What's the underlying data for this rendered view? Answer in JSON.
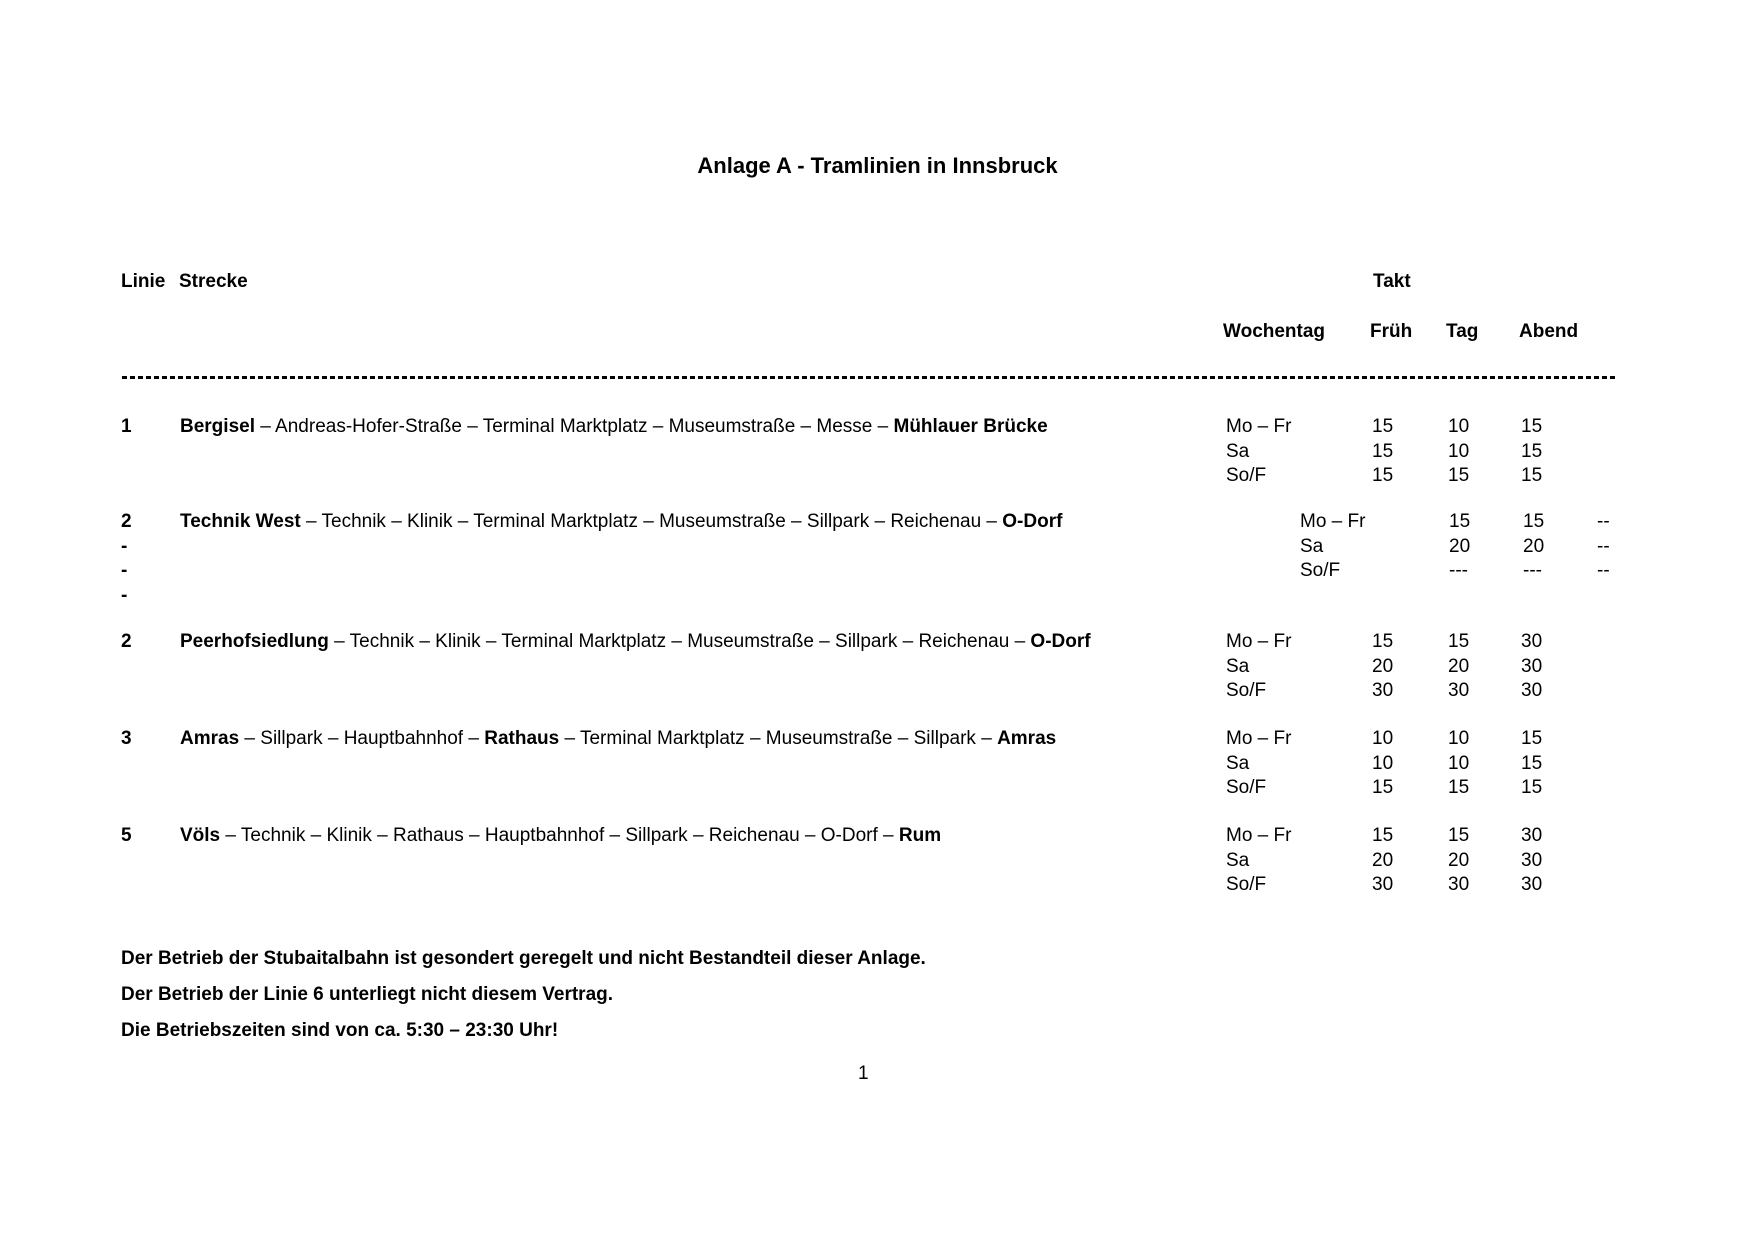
{
  "title": "Anlage A - Tramlinien in Innsbruck",
  "headers": {
    "linie": "Linie",
    "strecke": "Strecke",
    "takt": "Takt",
    "wochentag": "Wochentag",
    "frueh": "Früh",
    "tag": "Tag",
    "abend": "Abend"
  },
  "rows": [
    {
      "linie": [
        "1"
      ],
      "strecke": [
        {
          "text": "Bergisel",
          "bold": true
        },
        {
          "text": " – Andreas-Hofer-Straße – Terminal Marktplatz – Museumstraße – Messe – ",
          "bold": false
        },
        {
          "text": "Mühlauer Brücke",
          "bold": true
        }
      ],
      "schedule_indented": false,
      "schedule": [
        {
          "day": "Mo – Fr",
          "values": [
            "15",
            "10",
            "15"
          ]
        },
        {
          "day": "Sa",
          "values": [
            "15",
            "10",
            "15"
          ]
        },
        {
          "day": "So/F",
          "values": [
            "15",
            "15",
            "15"
          ]
        }
      ]
    },
    {
      "linie": [
        "2",
        "-",
        "-",
        "-"
      ],
      "strecke": [
        {
          "text": "Technik West",
          "bold": true
        },
        {
          "text": " – Technik – Klinik – Terminal Marktplatz – Museumstraße – Sillpark – Reichenau – ",
          "bold": false
        },
        {
          "text": "O-Dorf",
          "bold": true
        }
      ],
      "schedule_indented": true,
      "schedule": [
        {
          "day": "Mo – Fr",
          "values": [
            "15",
            "15",
            "--"
          ]
        },
        {
          "day": "Sa",
          "values": [
            "20",
            "20",
            "--"
          ]
        },
        {
          "day": "So/F",
          "values": [
            "---",
            "---",
            "--"
          ]
        }
      ]
    },
    {
      "linie": [
        "2"
      ],
      "strecke": [
        {
          "text": "Peerhofsiedlung",
          "bold": true
        },
        {
          "text": " – Technik – Klinik – Terminal Marktplatz – Museumstraße – Sillpark – Reichenau – ",
          "bold": false
        },
        {
          "text": "O-Dorf",
          "bold": true
        }
      ],
      "schedule_indented": false,
      "schedule": [
        {
          "day": "Mo – Fr",
          "values": [
            "15",
            "15",
            "30"
          ]
        },
        {
          "day": "Sa",
          "values": [
            "20",
            "20",
            "30"
          ]
        },
        {
          "day": "So/F",
          "values": [
            "30",
            "30",
            "30"
          ]
        }
      ]
    },
    {
      "linie": [
        "3"
      ],
      "strecke": [
        {
          "text": "Amras",
          "bold": true
        },
        {
          "text": " – Sillpark – Hauptbahnhof – ",
          "bold": false
        },
        {
          "text": "Rathaus",
          "bold": true
        },
        {
          "text": " – Terminal Marktplatz – Museumstraße – Sillpark – ",
          "bold": false
        },
        {
          "text": "Amras",
          "bold": true
        }
      ],
      "schedule_indented": false,
      "schedule": [
        {
          "day": "Mo – Fr",
          "values": [
            "10",
            "10",
            "15"
          ]
        },
        {
          "day": "Sa",
          "values": [
            "10",
            "10",
            "15"
          ]
        },
        {
          "day": "So/F",
          "values": [
            "15",
            "15",
            "15"
          ]
        }
      ]
    },
    {
      "linie": [
        "5"
      ],
      "strecke": [
        {
          "text": "Völs",
          "bold": true
        },
        {
          "text": " – Technik – Klinik – Rathaus – Hauptbahnhof – Sillpark – Reichenau – O-Dorf – ",
          "bold": false
        },
        {
          "text": "Rum",
          "bold": true
        }
      ],
      "schedule_indented": false,
      "schedule": [
        {
          "day": "Mo – Fr",
          "values": [
            "15",
            "15",
            "30"
          ]
        },
        {
          "day": "Sa",
          "values": [
            "20",
            "20",
            "30"
          ]
        },
        {
          "day": "So/F",
          "values": [
            "30",
            "30",
            "30"
          ]
        }
      ]
    }
  ],
  "notes": [
    "Der Betrieb der Stubaitalbahn ist gesondert geregelt und nicht Bestandteil dieser Anlage.",
    "Der Betrieb der Linie 6 unterliegt nicht diesem Vertrag.",
    "Die Betriebszeiten sind von ca. 5:30 – 23:30 Uhr!"
  ],
  "page_number": "1"
}
